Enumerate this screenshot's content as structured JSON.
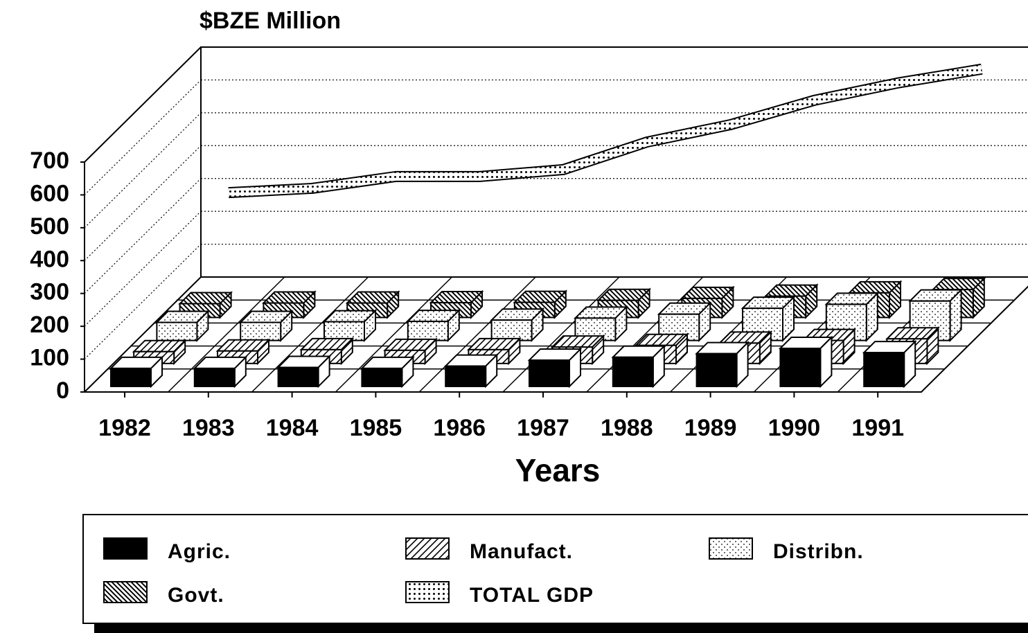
{
  "chart_data": {
    "type": "bar3d",
    "title": "$BZE Million",
    "x_label": "Years",
    "categories": [
      "1982",
      "1983",
      "1984",
      "1985",
      "1986",
      "1987",
      "1988",
      "1989",
      "1990",
      "1991"
    ],
    "ylim": [
      0,
      700
    ],
    "yticks": [
      0,
      100,
      200,
      300,
      400,
      500,
      600,
      700
    ],
    "grid": true,
    "series": [
      {
        "name": "Agric.",
        "color": "#000000",
        "pattern": "solid",
        "values": [
          55,
          55,
          58,
          55,
          62,
          80,
          89,
          100,
          116,
          103
        ]
      },
      {
        "name": "Manufact.",
        "color": "#000000",
        "pattern": "hatch",
        "values": [
          36,
          38,
          42,
          40,
          42,
          50,
          55,
          62,
          70,
          75
        ]
      },
      {
        "name": "Distribn.",
        "color": "#000000",
        "pattern": "dots",
        "values": [
          55,
          55,
          57,
          58,
          62,
          68,
          80,
          98,
          110,
          120
        ]
      },
      {
        "name": "Govt.",
        "color": "#000000",
        "pattern": "backhatch",
        "values": [
          42,
          44,
          44,
          45,
          46,
          52,
          58,
          65,
          75,
          85
        ]
      },
      {
        "name": "TOTAL GDP",
        "color": "#000000",
        "pattern": "densedots",
        "kind": "line",
        "values": [
          257,
          270,
          306,
          306,
          327,
          411,
          464,
          538,
          591,
          633
        ]
      }
    ]
  }
}
